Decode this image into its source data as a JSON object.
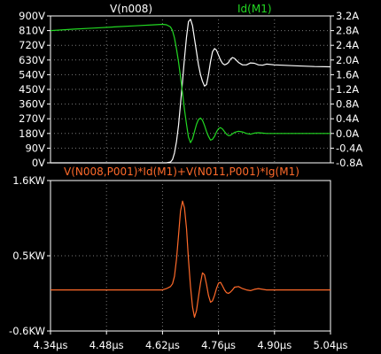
{
  "chart_data": [
    {
      "type": "line",
      "title_left": "V(n008)",
      "title_right": "Id(M1)",
      "colors": {
        "left": "#ffffff",
        "right": "#22d822",
        "grid": "#7a7a7a"
      },
      "xlim": [
        4.34,
        5.04
      ],
      "ylim_left": [
        0,
        900
      ],
      "ylim_right": [
        -0.8,
        3.2
      ],
      "yticks_left": [
        "0V",
        "90V",
        "180V",
        "270V",
        "360V",
        "450V",
        "540V",
        "630V",
        "720V",
        "810V",
        "900V"
      ],
      "yticks_right": [
        "-0.8A",
        "-0.4A",
        "0.0A",
        "0.4A",
        "0.8A",
        "1.2A",
        "1.6A",
        "2.0A",
        "2.4A",
        "2.8A",
        "3.2A"
      ],
      "grid": true,
      "series": [
        {
          "name": "V(n008)",
          "axis": "left",
          "x": [
            4.34,
            4.4,
            4.45,
            4.5,
            4.55,
            4.6,
            4.62,
            4.63,
            4.64,
            4.645,
            4.65,
            4.655,
            4.66,
            4.665,
            4.67,
            4.675,
            4.68,
            4.685,
            4.69,
            4.695,
            4.7,
            4.705,
            4.71,
            4.715,
            4.72,
            4.725,
            4.73,
            4.735,
            4.74,
            4.745,
            4.75,
            4.755,
            4.76,
            4.765,
            4.77,
            4.775,
            4.78,
            4.785,
            4.79,
            4.795,
            4.8,
            4.81,
            4.82,
            4.83,
            4.84,
            4.85,
            4.86,
            4.87,
            4.88,
            4.9,
            4.92,
            4.95,
            5.0,
            5.04
          ],
          "y": [
            0,
            0,
            0,
            0,
            0,
            0,
            0,
            0,
            5,
            20,
            60,
            130,
            230,
            360,
            500,
            640,
            770,
            865,
            880,
            840,
            760,
            680,
            600,
            540,
            500,
            470,
            480,
            540,
            620,
            680,
            700,
            690,
            660,
            630,
            610,
            600,
            605,
            615,
            635,
            645,
            640,
            615,
            600,
            600,
            612,
            610,
            600,
            598,
            605,
            600,
            598,
            595,
            590,
            588
          ]
        },
        {
          "name": "Id(M1)",
          "axis": "right",
          "x": [
            4.34,
            4.4,
            4.45,
            4.5,
            4.55,
            4.6,
            4.62,
            4.63,
            4.64,
            4.645,
            4.65,
            4.655,
            4.66,
            4.665,
            4.67,
            4.675,
            4.68,
            4.685,
            4.69,
            4.695,
            4.7,
            4.705,
            4.71,
            4.715,
            4.72,
            4.725,
            4.73,
            4.735,
            4.74,
            4.745,
            4.75,
            4.755,
            4.76,
            4.765,
            4.77,
            4.775,
            4.78,
            4.785,
            4.79,
            4.795,
            4.8,
            4.81,
            4.82,
            4.83,
            4.84,
            4.85,
            4.86,
            4.87,
            4.88,
            4.9,
            4.92,
            4.95,
            5.0,
            5.04
          ],
          "y": [
            2.8,
            2.84,
            2.87,
            2.9,
            2.93,
            2.96,
            2.97,
            2.96,
            2.9,
            2.8,
            2.6,
            2.3,
            1.95,
            1.55,
            1.1,
            0.65,
            0.25,
            -0.1,
            -0.25,
            -0.15,
            0.05,
            0.25,
            0.38,
            0.42,
            0.36,
            0.22,
            0.05,
            -0.08,
            -0.18,
            -0.16,
            -0.08,
            0.04,
            0.13,
            0.16,
            0.12,
            0.05,
            -0.02,
            -0.06,
            -0.05,
            -0.01,
            0.03,
            0.06,
            0.04,
            0.0,
            -0.02,
            0.01,
            0.02,
            0.01,
            0.0,
            0.0,
            0.0,
            0.0,
            0.0,
            0.0
          ]
        }
      ],
      "xticks": [
        "4.34µs",
        "4.48µs",
        "4.62µs",
        "4.76µs",
        "4.90µs",
        "5.04µs"
      ]
    },
    {
      "type": "line",
      "title": "V(N008,P001)*Id(M1)+V(N011,P001)*Ig(M1)",
      "colors": {
        "line": "#ff6a2a",
        "title": "#ff6a2a"
      },
      "xlim": [
        4.34,
        5.04
      ],
      "ylim": [
        -0.6,
        1.6
      ],
      "yticks": [
        {
          "value": 1.6,
          "label": "1.6KW"
        },
        {
          "value": 0.5,
          "label": "0.5KW"
        },
        {
          "value": -0.6,
          "label": "-0.6KW"
        }
      ],
      "xticks": [
        "4.34µs",
        "4.48µs",
        "4.62µs",
        "4.76µs",
        "4.90µs",
        "5.04µs"
      ],
      "grid": true,
      "series": [
        {
          "name": "V(N008,P001)*Id(M1)+V(N011,P001)*Ig(M1)",
          "x": [
            4.34,
            4.45,
            4.55,
            4.6,
            4.62,
            4.63,
            4.64,
            4.645,
            4.65,
            4.655,
            4.66,
            4.665,
            4.67,
            4.675,
            4.68,
            4.685,
            4.69,
            4.695,
            4.7,
            4.705,
            4.71,
            4.715,
            4.72,
            4.725,
            4.73,
            4.735,
            4.74,
            4.745,
            4.75,
            4.755,
            4.76,
            4.765,
            4.77,
            4.775,
            4.78,
            4.785,
            4.79,
            4.795,
            4.8,
            4.81,
            4.82,
            4.83,
            4.84,
            4.85,
            4.86,
            4.87,
            4.88,
            4.9,
            4.95,
            5.0,
            5.04
          ],
          "y": [
            0,
            0,
            0,
            0,
            0,
            0.02,
            0.05,
            0.09,
            0.2,
            0.45,
            0.8,
            1.15,
            1.3,
            1.2,
            0.9,
            0.45,
            0.05,
            -0.25,
            -0.4,
            -0.3,
            -0.1,
            0.1,
            0.25,
            0.22,
            0.08,
            -0.08,
            -0.18,
            -0.16,
            -0.08,
            0.02,
            0.1,
            0.11,
            0.06,
            0.0,
            -0.04,
            -0.05,
            -0.03,
            0.0,
            0.04,
            0.05,
            0.02,
            0.0,
            -0.01,
            0.01,
            0.02,
            0.01,
            0.0,
            0.0,
            0.0,
            0.0,
            0.0
          ]
        }
      ]
    }
  ]
}
